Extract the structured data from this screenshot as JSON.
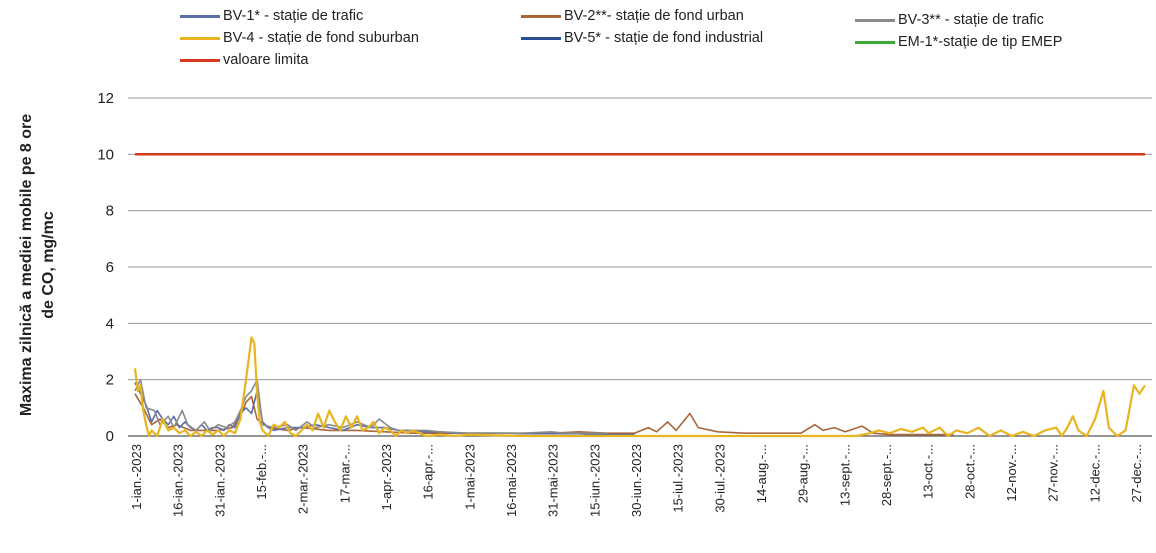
{
  "chart_data": {
    "type": "line",
    "title": "",
    "ylabel_line1": "Maxima zilnică a mediei mobile pe 8 ore",
    "ylabel_line2": "de CO, mg/mc",
    "xlabel": "",
    "ylim": [
      0,
      12
    ],
    "yticks": [
      "0",
      "2",
      "4",
      "6",
      "8",
      "10",
      "12"
    ],
    "grid": true,
    "legend_position": "top",
    "x_tick_labels": [
      "1-ian.-2023",
      "16-ian.-2023",
      "31-ian.-2023",
      "15-feb.-...",
      "2-mar.-2023",
      "17-mar.-...",
      "1-apr.-2023",
      "16-apr.-...",
      "1-mai-2023",
      "16-mai-2023",
      "31-mai-2023",
      "15-iun.-2023",
      "30-iun.-2023",
      "15-iul.-2023",
      "30-iul.-2023",
      "14-aug.-...",
      "29-aug.-...",
      "13-sept.-...",
      "28-sept.-...",
      "13-oct.-...",
      "28-oct.-...",
      "12-nov.-...",
      "27-nov.-...",
      "12-dec.-...",
      "27-dec.-..."
    ],
    "series": [
      {
        "name": "BV-1* - stație de trafic",
        "color": "#5a6fa8",
        "points": [
          [
            0,
            1.9
          ],
          [
            2,
            1.5
          ],
          [
            4,
            1.1
          ],
          [
            6,
            0.5
          ],
          [
            8,
            0.9
          ],
          [
            10,
            0.6
          ],
          [
            12,
            0.4
          ],
          [
            14,
            0.7
          ],
          [
            16,
            0.3
          ],
          [
            18,
            0.5
          ],
          [
            20,
            0.3
          ],
          [
            22,
            0.2
          ],
          [
            24,
            0.4
          ],
          [
            26,
            0.2
          ],
          [
            28,
            0.3
          ],
          [
            30,
            0.3
          ],
          [
            32,
            0.2
          ],
          [
            34,
            0.4
          ],
          [
            36,
            0.3
          ],
          [
            38,
            0.8
          ],
          [
            40,
            1.0
          ],
          [
            42,
            0.8
          ],
          [
            44,
            1.6
          ],
          [
            46,
            0.5
          ],
          [
            48,
            0.3
          ],
          [
            50,
            0.2
          ],
          [
            55,
            0.3
          ],
          [
            60,
            0.3
          ],
          [
            65,
            0.4
          ],
          [
            70,
            0.3
          ],
          [
            75,
            0.2
          ],
          [
            80,
            0.4
          ],
          [
            85,
            0.3
          ],
          [
            90,
            0.3
          ],
          [
            95,
            0.2
          ],
          [
            100,
            0.2
          ],
          [
            105,
            0.15
          ],
          [
            110,
            0.15
          ],
          [
            115,
            0.1
          ],
          [
            120,
            0.1
          ],
          [
            125,
            0.1
          ],
          [
            130,
            0.1
          ],
          [
            135,
            0.1
          ],
          [
            140,
            0.08
          ],
          [
            145,
            0.08
          ],
          [
            150,
            0.08
          ],
          [
            155,
            0.08
          ],
          [
            160,
            0.08
          ],
          [
            165,
            0.05
          ],
          [
            170,
            0.05
          ],
          [
            180,
            0.05
          ]
        ]
      },
      {
        "name": "BV-2**- stație de fond urban",
        "color": "#a8673a",
        "points": [
          [
            0,
            1.5
          ],
          [
            3,
            1.0
          ],
          [
            6,
            0.4
          ],
          [
            9,
            0.6
          ],
          [
            12,
            0.3
          ],
          [
            15,
            0.4
          ],
          [
            20,
            0.2
          ],
          [
            25,
            0.2
          ],
          [
            30,
            0.2
          ],
          [
            35,
            0.3
          ],
          [
            38,
            0.7
          ],
          [
            40,
            1.2
          ],
          [
            42,
            1.4
          ],
          [
            44,
            0.6
          ],
          [
            48,
            0.3
          ],
          [
            55,
            0.2
          ],
          [
            60,
            0.3
          ],
          [
            70,
            0.2
          ],
          [
            80,
            0.2
          ],
          [
            90,
            0.15
          ],
          [
            100,
            0.1
          ],
          [
            120,
            0.1
          ],
          [
            140,
            0.1
          ],
          [
            150,
            0.1
          ],
          [
            160,
            0.15
          ],
          [
            170,
            0.1
          ],
          [
            180,
            0.1
          ],
          [
            185,
            0.3
          ],
          [
            188,
            0.15
          ],
          [
            192,
            0.5
          ],
          [
            195,
            0.2
          ],
          [
            200,
            0.8
          ],
          [
            203,
            0.3
          ],
          [
            210,
            0.15
          ],
          [
            220,
            0.1
          ],
          [
            230,
            0.1
          ],
          [
            240,
            0.1
          ],
          [
            245,
            0.4
          ],
          [
            248,
            0.2
          ],
          [
            252,
            0.3
          ],
          [
            256,
            0.15
          ],
          [
            262,
            0.35
          ],
          [
            266,
            0.1
          ],
          [
            272,
            0.05
          ],
          [
            280,
            0.05
          ],
          [
            290,
            0.05
          ],
          [
            295,
            0.05
          ]
        ]
      },
      {
        "name": "BV-3** - stație de trafic",
        "color": "#8a8a8a",
        "points": [
          [
            0,
            1.6
          ],
          [
            2,
            2.0
          ],
          [
            4,
            1.0
          ],
          [
            7,
            0.9
          ],
          [
            9,
            0.4
          ],
          [
            12,
            0.7
          ],
          [
            14,
            0.3
          ],
          [
            17,
            0.9
          ],
          [
            19,
            0.4
          ],
          [
            22,
            0.2
          ],
          [
            25,
            0.5
          ],
          [
            27,
            0.2
          ],
          [
            30,
            0.4
          ],
          [
            33,
            0.3
          ],
          [
            36,
            0.5
          ],
          [
            38,
            0.9
          ],
          [
            40,
            1.4
          ],
          [
            42,
            1.6
          ],
          [
            44,
            2.0
          ],
          [
            46,
            0.4
          ],
          [
            50,
            0.3
          ],
          [
            55,
            0.4
          ],
          [
            58,
            0.2
          ],
          [
            62,
            0.5
          ],
          [
            65,
            0.3
          ],
          [
            70,
            0.4
          ],
          [
            75,
            0.3
          ],
          [
            80,
            0.5
          ],
          [
            85,
            0.3
          ],
          [
            88,
            0.6
          ],
          [
            92,
            0.3
          ],
          [
            95,
            0.2
          ],
          [
            100,
            0.2
          ],
          [
            105,
            0.2
          ],
          [
            110,
            0.15
          ],
          [
            120,
            0.1
          ],
          [
            130,
            0.1
          ],
          [
            140,
            0.1
          ],
          [
            150,
            0.15
          ],
          [
            155,
            0.1
          ],
          [
            160,
            0.1
          ],
          [
            170,
            0.1
          ]
        ]
      },
      {
        "name": "BV-4 - stație de fond suburban",
        "color": "#e8b420",
        "points": [
          [
            0,
            2.4
          ],
          [
            1,
            1.6
          ],
          [
            2,
            1.8
          ],
          [
            3,
            0.9
          ],
          [
            4,
            0.4
          ],
          [
            5,
            0.0
          ],
          [
            6,
            0.2
          ],
          [
            8,
            0.0
          ],
          [
            10,
            0.6
          ],
          [
            12,
            0.2
          ],
          [
            14,
            0.3
          ],
          [
            16,
            0.1
          ],
          [
            18,
            0.2
          ],
          [
            20,
            0.0
          ],
          [
            22,
            0.15
          ],
          [
            24,
            0.0
          ],
          [
            26,
            0.2
          ],
          [
            28,
            0.05
          ],
          [
            30,
            0.2
          ],
          [
            32,
            0.0
          ],
          [
            34,
            0.2
          ],
          [
            36,
            0.1
          ],
          [
            38,
            0.6
          ],
          [
            40,
            2.0
          ],
          [
            42,
            3.5
          ],
          [
            43,
            3.3
          ],
          [
            44,
            1.5
          ],
          [
            45,
            0.5
          ],
          [
            46,
            0.2
          ],
          [
            48,
            0.0
          ],
          [
            50,
            0.4
          ],
          [
            52,
            0.3
          ],
          [
            54,
            0.5
          ],
          [
            56,
            0.1
          ],
          [
            58,
            0.0
          ],
          [
            60,
            0.2
          ],
          [
            62,
            0.4
          ],
          [
            64,
            0.2
          ],
          [
            66,
            0.8
          ],
          [
            68,
            0.3
          ],
          [
            70,
            0.9
          ],
          [
            72,
            0.5
          ],
          [
            74,
            0.2
          ],
          [
            76,
            0.7
          ],
          [
            78,
            0.3
          ],
          [
            80,
            0.7
          ],
          [
            82,
            0.2
          ],
          [
            84,
            0.3
          ],
          [
            86,
            0.5
          ],
          [
            88,
            0.1
          ],
          [
            90,
            0.3
          ],
          [
            92,
            0.2
          ],
          [
            94,
            0.0
          ],
          [
            96,
            0.2
          ],
          [
            98,
            0.1
          ],
          [
            100,
            0.2
          ],
          [
            105,
            0.0
          ],
          [
            110,
            0.05
          ],
          [
            115,
            0.0
          ],
          [
            120,
            0.05
          ],
          [
            140,
            0.0
          ],
          [
            160,
            0.0
          ],
          [
            180,
            0.0
          ],
          [
            200,
            0.0
          ],
          [
            220,
            0.0
          ],
          [
            240,
            0.0
          ],
          [
            260,
            0.0
          ],
          [
            265,
            0.1
          ],
          [
            268,
            0.2
          ],
          [
            272,
            0.1
          ],
          [
            276,
            0.25
          ],
          [
            280,
            0.15
          ],
          [
            284,
            0.3
          ],
          [
            286,
            0.1
          ],
          [
            290,
            0.3
          ],
          [
            293,
            0.0
          ],
          [
            296,
            0.2
          ],
          [
            300,
            0.1
          ],
          [
            304,
            0.3
          ],
          [
            308,
            0.0
          ],
          [
            312,
            0.2
          ],
          [
            316,
            0.0
          ],
          [
            320,
            0.15
          ],
          [
            324,
            0.0
          ],
          [
            328,
            0.2
          ],
          [
            332,
            0.3
          ],
          [
            334,
            0.0
          ],
          [
            336,
            0.3
          ],
          [
            338,
            0.7
          ],
          [
            340,
            0.2
          ],
          [
            343,
            0.0
          ],
          [
            346,
            0.6
          ],
          [
            349,
            1.6
          ],
          [
            351,
            0.3
          ],
          [
            354,
            0.0
          ],
          [
            357,
            0.2
          ],
          [
            360,
            1.8
          ],
          [
            362,
            1.5
          ],
          [
            364,
            1.8
          ]
        ]
      },
      {
        "name": "BV-5* - stație de fond industrial",
        "color": "#2a4f8e",
        "points": []
      },
      {
        "name": "EM-1*-stație de tip EMEP",
        "color": "#3aaa35",
        "points": []
      },
      {
        "name": "valoare limita",
        "color": "#d63a1e",
        "points": [
          [
            0,
            10
          ],
          [
            364,
            10
          ]
        ]
      }
    ]
  }
}
